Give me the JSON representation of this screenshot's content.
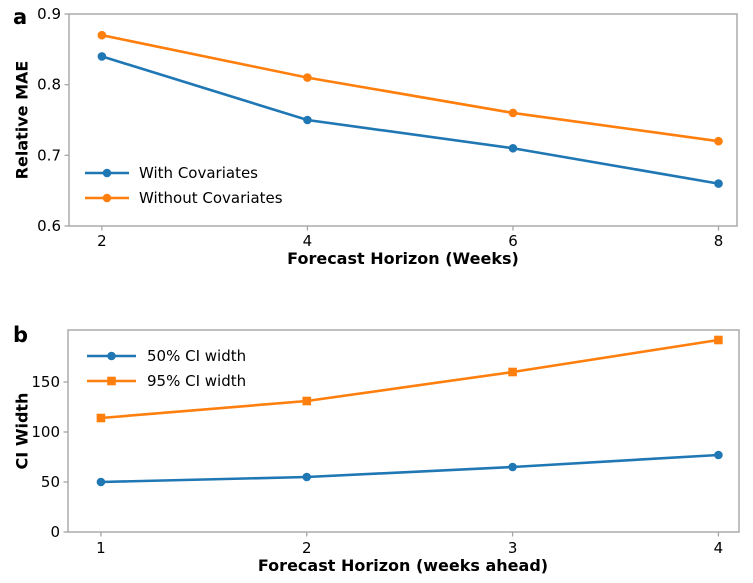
{
  "figure": {
    "background": "#ffffff",
    "spine_color": "#a6a6a6",
    "tick_color": "#a6a6a6",
    "text_color": "#000000",
    "accent_blue": "#1f77b4",
    "accent_orange": "#ff7f0e"
  },
  "chart_data": [
    {
      "id": "a",
      "panel_label": "a",
      "type": "line",
      "x": [
        2,
        4,
        6,
        8
      ],
      "xtick_labels": [
        "2",
        "4",
        "6",
        "8"
      ],
      "yticks": [
        0.6,
        0.7,
        0.8,
        0.9
      ],
      "ytick_labels": [
        "0.6",
        "0.7",
        "0.8",
        "0.9"
      ],
      "xlim": [
        1.68,
        8.18
      ],
      "ylim": [
        0.6,
        0.9
      ],
      "xlabel": "Forecast Horizon (Weeks)",
      "ylabel": "Relative MAE",
      "grid": false,
      "legend_position": "lower-left",
      "series": [
        {
          "name": "With Covariates",
          "color": "#1f77b4",
          "marker": "circle",
          "values": [
            0.84,
            0.75,
            0.71,
            0.66
          ]
        },
        {
          "name": "Without Covariates",
          "color": "#ff7f0e",
          "marker": "circle",
          "values": [
            0.87,
            0.81,
            0.76,
            0.72
          ]
        }
      ]
    },
    {
      "id": "b",
      "panel_label": "b",
      "type": "line",
      "x": [
        1,
        2,
        3,
        4
      ],
      "xtick_labels": [
        "1",
        "2",
        "3",
        "4"
      ],
      "yticks": [
        0,
        50,
        100,
        150
      ],
      "ytick_labels": [
        "0",
        "50",
        "100",
        "150"
      ],
      "xlim": [
        0.84,
        4.1
      ],
      "ylim": [
        0,
        202
      ],
      "xlabel": "Forecast Horizon (weeks ahead)",
      "ylabel": "CI Width",
      "grid": false,
      "legend_position": "upper-left",
      "series": [
        {
          "name": "50% CI width",
          "color": "#1f77b4",
          "marker": "circle",
          "values": [
            50,
            55,
            65,
            77
          ]
        },
        {
          "name": "95% CI width",
          "color": "#ff7f0e",
          "marker": "square",
          "values": [
            114,
            131,
            160,
            192
          ]
        }
      ]
    }
  ]
}
